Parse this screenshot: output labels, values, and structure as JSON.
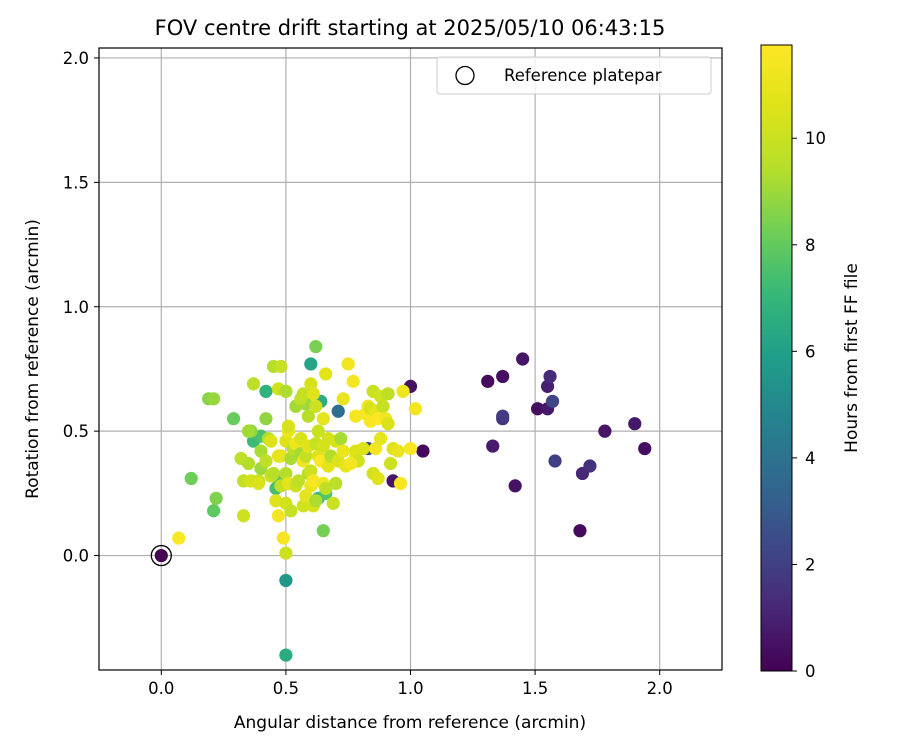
{
  "chart_data": {
    "type": "scatter",
    "title": "FOV centre drift starting at 2025/05/10 06:43:15",
    "xlabel": "Angular distance from reference (arcmin)",
    "ylabel": "Rotation from reference (arcmin)",
    "xlim": [
      -0.25,
      2.25
    ],
    "ylim": [
      -0.46,
      2.04
    ],
    "xticks": [
      "0.0",
      "0.5",
      "1.0",
      "1.5",
      "2.0"
    ],
    "yticks": [
      "0.0",
      "0.5",
      "1.0",
      "1.5",
      "2.0"
    ],
    "grid": true,
    "legend": {
      "placement": "top-right",
      "entries": [
        {
          "label": "Reference platepar",
          "marker": "open-circle"
        }
      ]
    },
    "colorbar": {
      "label": "Hours from first FF file",
      "colormap": "viridis",
      "range": [
        0,
        11.75
      ],
      "ticks": [
        "0",
        "2",
        "4",
        "6",
        "8",
        "10"
      ]
    },
    "reference_point": {
      "x": 0.0,
      "y": 0.0,
      "h": 0.0
    },
    "points": [
      {
        "x": 1.05,
        "y": 0.42,
        "h": 0.2
      },
      {
        "x": 1.0,
        "y": 0.68,
        "h": 0.5
      },
      {
        "x": 1.31,
        "y": 0.7,
        "h": 0.3
      },
      {
        "x": 1.37,
        "y": 0.72,
        "h": 0.4
      },
      {
        "x": 1.45,
        "y": 0.79,
        "h": 0.6
      },
      {
        "x": 1.33,
        "y": 0.44,
        "h": 0.8
      },
      {
        "x": 1.37,
        "y": 0.55,
        "h": 1.6
      },
      {
        "x": 1.37,
        "y": 0.56,
        "h": 1.8
      },
      {
        "x": 1.42,
        "y": 0.28,
        "h": 0.5
      },
      {
        "x": 1.51,
        "y": 0.59,
        "h": 0.4
      },
      {
        "x": 1.55,
        "y": 0.59,
        "h": 0.7
      },
      {
        "x": 1.55,
        "y": 0.68,
        "h": 0.9
      },
      {
        "x": 1.56,
        "y": 0.72,
        "h": 1.3
      },
      {
        "x": 1.57,
        "y": 0.62,
        "h": 2.2
      },
      {
        "x": 1.58,
        "y": 0.38,
        "h": 2.0
      },
      {
        "x": 1.68,
        "y": 0.1,
        "h": 0.3
      },
      {
        "x": 1.69,
        "y": 0.33,
        "h": 1.2
      },
      {
        "x": 1.72,
        "y": 0.36,
        "h": 1.5
      },
      {
        "x": 1.78,
        "y": 0.5,
        "h": 0.6
      },
      {
        "x": 1.9,
        "y": 0.53,
        "h": 0.7
      },
      {
        "x": 1.94,
        "y": 0.43,
        "h": 0.4
      },
      {
        "x": 0.93,
        "y": 0.3,
        "h": 0.6
      },
      {
        "x": 0.83,
        "y": 0.43,
        "h": 2.6
      },
      {
        "x": 0.71,
        "y": 0.58,
        "h": 3.8
      },
      {
        "x": 0.6,
        "y": 0.77,
        "h": 6.2
      },
      {
        "x": 0.5,
        "y": -0.1,
        "h": 5.6
      },
      {
        "x": 0.5,
        "y": -0.4,
        "h": 6.5
      },
      {
        "x": 0.42,
        "y": 0.66,
        "h": 6.8
      },
      {
        "x": 0.64,
        "y": 0.62,
        "h": 6.6
      },
      {
        "x": 0.62,
        "y": 0.84,
        "h": 8.4
      },
      {
        "x": 0.19,
        "y": 0.63,
        "h": 8.6
      },
      {
        "x": 0.21,
        "y": 0.63,
        "h": 8.9
      },
      {
        "x": 0.12,
        "y": 0.31,
        "h": 8.2
      },
      {
        "x": 0.21,
        "y": 0.18,
        "h": 7.9
      },
      {
        "x": 0.22,
        "y": 0.23,
        "h": 8.5
      },
      {
        "x": 0.29,
        "y": 0.55,
        "h": 8.1
      },
      {
        "x": 0.37,
        "y": 0.46,
        "h": 7.2
      },
      {
        "x": 0.4,
        "y": 0.48,
        "h": 7.5
      },
      {
        "x": 0.46,
        "y": 0.27,
        "h": 7.4
      },
      {
        "x": 0.47,
        "y": 0.31,
        "h": 7.6
      },
      {
        "x": 0.65,
        "y": 0.1,
        "h": 8.3
      },
      {
        "x": 0.63,
        "y": 0.23,
        "h": 7.1
      },
      {
        "x": 0.66,
        "y": 0.25,
        "h": 7.7
      },
      {
        "x": 0.58,
        "y": 0.61,
        "h": 9.0
      },
      {
        "x": 0.42,
        "y": 0.55,
        "h": 8.8
      },
      {
        "x": 0.36,
        "y": 0.5,
        "h": 8.7
      },
      {
        "x": 0.37,
        "y": 0.69,
        "h": 9.6
      },
      {
        "x": 0.45,
        "y": 0.76,
        "h": 9.4
      },
      {
        "x": 0.48,
        "y": 0.76,
        "h": 9.9
      },
      {
        "x": 0.47,
        "y": 0.67,
        "h": 10.2
      },
      {
        "x": 0.5,
        "y": 0.66,
        "h": 9.3
      },
      {
        "x": 0.54,
        "y": 0.6,
        "h": 9.1
      },
      {
        "x": 0.56,
        "y": 0.63,
        "h": 9.7
      },
      {
        "x": 0.57,
        "y": 0.65,
        "h": 9.8
      },
      {
        "x": 0.59,
        "y": 0.56,
        "h": 9.5
      },
      {
        "x": 0.6,
        "y": 0.69,
        "h": 10.4
      },
      {
        "x": 0.62,
        "y": 0.6,
        "h": 10.1
      },
      {
        "x": 0.61,
        "y": 0.65,
        "h": 10.7
      },
      {
        "x": 0.63,
        "y": 0.5,
        "h": 10.0
      },
      {
        "x": 0.66,
        "y": 0.73,
        "h": 10.8
      },
      {
        "x": 0.65,
        "y": 0.55,
        "h": 10.9
      },
      {
        "x": 0.67,
        "y": 0.47,
        "h": 10.3
      },
      {
        "x": 0.7,
        "y": 0.46,
        "h": 10.5
      },
      {
        "x": 0.72,
        "y": 0.47,
        "h": 9.2
      },
      {
        "x": 0.73,
        "y": 0.63,
        "h": 11.0
      },
      {
        "x": 0.75,
        "y": 0.77,
        "h": 11.3
      },
      {
        "x": 0.77,
        "y": 0.7,
        "h": 11.4
      },
      {
        "x": 0.78,
        "y": 0.56,
        "h": 11.5
      },
      {
        "x": 0.78,
        "y": 0.4,
        "h": 11.1
      },
      {
        "x": 0.78,
        "y": 0.42,
        "h": 10.6
      },
      {
        "x": 0.79,
        "y": 0.38,
        "h": 10.2
      },
      {
        "x": 0.32,
        "y": 0.39,
        "h": 9.6
      },
      {
        "x": 0.35,
        "y": 0.37,
        "h": 9.4
      },
      {
        "x": 0.33,
        "y": 0.3,
        "h": 9.8
      },
      {
        "x": 0.33,
        "y": 0.16,
        "h": 10.1
      },
      {
        "x": 0.35,
        "y": 0.5,
        "h": 9.1
      },
      {
        "x": 0.36,
        "y": 0.3,
        "h": 10.3
      },
      {
        "x": 0.39,
        "y": 0.3,
        "h": 9.9
      },
      {
        "x": 0.39,
        "y": 0.29,
        "h": 10.5
      },
      {
        "x": 0.4,
        "y": 0.35,
        "h": 9.0
      },
      {
        "x": 0.4,
        "y": 0.42,
        "h": 9.2
      },
      {
        "x": 0.42,
        "y": 0.38,
        "h": 9.7
      },
      {
        "x": 0.43,
        "y": 0.47,
        "h": 9.3
      },
      {
        "x": 0.44,
        "y": 0.46,
        "h": 10.6
      },
      {
        "x": 0.44,
        "y": 0.32,
        "h": 10.0
      },
      {
        "x": 0.45,
        "y": 0.33,
        "h": 9.5
      },
      {
        "x": 0.46,
        "y": 0.22,
        "h": 10.7
      },
      {
        "x": 0.47,
        "y": 0.16,
        "h": 11.4
      },
      {
        "x": 0.47,
        "y": 0.4,
        "h": 11.0
      },
      {
        "x": 0.48,
        "y": 0.28,
        "h": 9.8
      },
      {
        "x": 0.48,
        "y": 0.4,
        "h": 10.9
      },
      {
        "x": 0.49,
        "y": 0.07,
        "h": 11.5
      },
      {
        "x": 0.5,
        "y": 0.01,
        "h": 10.1
      },
      {
        "x": 0.5,
        "y": 0.21,
        "h": 10.3
      },
      {
        "x": 0.5,
        "y": 0.33,
        "h": 9.4
      },
      {
        "x": 0.5,
        "y": 0.46,
        "h": 10.6
      },
      {
        "x": 0.51,
        "y": 0.29,
        "h": 10.8
      },
      {
        "x": 0.51,
        "y": 0.5,
        "h": 11.1
      },
      {
        "x": 0.51,
        "y": 0.52,
        "h": 10.4
      },
      {
        "x": 0.52,
        "y": 0.18,
        "h": 9.9
      },
      {
        "x": 0.52,
        "y": 0.39,
        "h": 9.2
      },
      {
        "x": 0.53,
        "y": 0.43,
        "h": 9.6
      },
      {
        "x": 0.54,
        "y": 0.28,
        "h": 10.0
      },
      {
        "x": 0.54,
        "y": 0.45,
        "h": 11.2
      },
      {
        "x": 0.55,
        "y": 0.3,
        "h": 9.7
      },
      {
        "x": 0.56,
        "y": 0.41,
        "h": 9.1
      },
      {
        "x": 0.56,
        "y": 0.47,
        "h": 10.5
      },
      {
        "x": 0.57,
        "y": 0.38,
        "h": 11.3
      },
      {
        "x": 0.57,
        "y": 0.2,
        "h": 10.2
      },
      {
        "x": 0.58,
        "y": 0.24,
        "h": 10.9
      },
      {
        "x": 0.58,
        "y": 0.4,
        "h": 9.8
      },
      {
        "x": 0.59,
        "y": 0.33,
        "h": 9.5
      },
      {
        "x": 0.59,
        "y": 0.44,
        "h": 10.7
      },
      {
        "x": 0.6,
        "y": 0.34,
        "h": 10.1
      },
      {
        "x": 0.6,
        "y": 0.28,
        "h": 11.0
      },
      {
        "x": 0.61,
        "y": 0.2,
        "h": 10.4
      },
      {
        "x": 0.61,
        "y": 0.3,
        "h": 11.6
      },
      {
        "x": 0.62,
        "y": 0.22,
        "h": 9.3
      },
      {
        "x": 0.62,
        "y": 0.45,
        "h": 9.9
      },
      {
        "x": 0.63,
        "y": 0.4,
        "h": 10.6
      },
      {
        "x": 0.64,
        "y": 0.38,
        "h": 11.7
      },
      {
        "x": 0.65,
        "y": 0.29,
        "h": 11.2
      },
      {
        "x": 0.65,
        "y": 0.44,
        "h": 10.3
      },
      {
        "x": 0.66,
        "y": 0.27,
        "h": 9.7
      },
      {
        "x": 0.67,
        "y": 0.36,
        "h": 10.8
      },
      {
        "x": 0.68,
        "y": 0.4,
        "h": 9.4
      },
      {
        "x": 0.69,
        "y": 0.21,
        "h": 10.0
      },
      {
        "x": 0.7,
        "y": 0.29,
        "h": 9.6
      },
      {
        "x": 0.71,
        "y": 0.38,
        "h": 10.5
      },
      {
        "x": 0.73,
        "y": 0.42,
        "h": 11.1
      },
      {
        "x": 0.74,
        "y": 0.36,
        "h": 10.9
      },
      {
        "x": 0.76,
        "y": 0.37,
        "h": 11.4
      },
      {
        "x": 0.81,
        "y": 0.43,
        "h": 10.6
      },
      {
        "x": 0.82,
        "y": 0.57,
        "h": 11.5
      },
      {
        "x": 0.83,
        "y": 0.6,
        "h": 11.2
      },
      {
        "x": 0.84,
        "y": 0.54,
        "h": 11.6
      },
      {
        "x": 0.84,
        "y": 0.59,
        "h": 10.4
      },
      {
        "x": 0.85,
        "y": 0.66,
        "h": 10.0
      },
      {
        "x": 0.85,
        "y": 0.33,
        "h": 10.3
      },
      {
        "x": 0.86,
        "y": 0.43,
        "h": 11.4
      },
      {
        "x": 0.86,
        "y": 0.58,
        "h": 10.8
      },
      {
        "x": 0.87,
        "y": 0.31,
        "h": 10.7
      },
      {
        "x": 0.87,
        "y": 0.55,
        "h": 11.7
      },
      {
        "x": 0.88,
        "y": 0.64,
        "h": 10.2
      },
      {
        "x": 0.88,
        "y": 0.47,
        "h": 10.9
      },
      {
        "x": 0.89,
        "y": 0.6,
        "h": 9.9
      },
      {
        "x": 0.9,
        "y": 0.55,
        "h": 11.3
      },
      {
        "x": 0.91,
        "y": 0.53,
        "h": 10.5
      },
      {
        "x": 0.91,
        "y": 0.65,
        "h": 9.7
      },
      {
        "x": 0.92,
        "y": 0.37,
        "h": 10.1
      },
      {
        "x": 0.93,
        "y": 0.43,
        "h": 10.6
      },
      {
        "x": 0.95,
        "y": 0.42,
        "h": 11.0
      },
      {
        "x": 0.96,
        "y": 0.29,
        "h": 11.5
      },
      {
        "x": 0.97,
        "y": 0.66,
        "h": 11.2
      },
      {
        "x": 1.0,
        "y": 0.43,
        "h": 11.6
      },
      {
        "x": 1.02,
        "y": 0.59,
        "h": 11.4
      },
      {
        "x": 0.07,
        "y": 0.07,
        "h": 11.7
      },
      {
        "x": 0.0,
        "y": 0.0,
        "h": 0.0
      }
    ]
  }
}
